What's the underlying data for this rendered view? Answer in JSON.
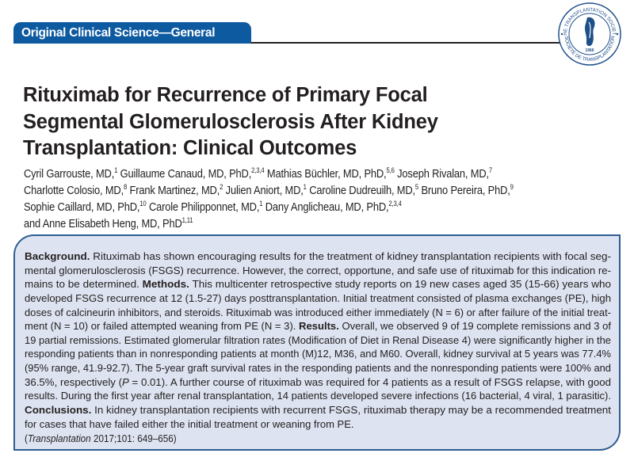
{
  "header": {
    "section_label": "Original Clinical Science—General",
    "accent_color": "#0e5aa0",
    "logo": {
      "top_text": "THE TRANSPLANTATION SOCIETY",
      "bottom_text": "SOCIÉTÉ DE TRANSPLANTATION",
      "year": "1966"
    }
  },
  "title": {
    "lines": [
      "Rituximab for Recurrence of Primary Focal",
      "Segmental Glomerulosclerosis After Kidney",
      "Transplantation: Clinical Outcomes"
    ]
  },
  "authors": {
    "lines": [
      [
        {
          "t": "Cyril Garrouste, MD,"
        },
        {
          "t": "1",
          "sup": true
        },
        {
          "t": " Guillaume Canaud, MD, PhD,"
        },
        {
          "t": "2,3,4",
          "sup": true
        },
        {
          "t": " Mathias Büchler, MD, PhD,"
        },
        {
          "t": "5,6",
          "sup": true
        },
        {
          "t": " Joseph Rivalan, MD,"
        },
        {
          "t": "7",
          "sup": true
        }
      ],
      [
        {
          "t": "Charlotte Colosio, MD,"
        },
        {
          "t": "8",
          "sup": true
        },
        {
          "t": " Frank Martinez, MD,"
        },
        {
          "t": "2",
          "sup": true
        },
        {
          "t": " Julien Aniort, MD,"
        },
        {
          "t": "1",
          "sup": true
        },
        {
          "t": " Caroline Dudreuilh, MD,"
        },
        {
          "t": "5",
          "sup": true
        },
        {
          "t": " Bruno Pereira, PhD,"
        },
        {
          "t": "9",
          "sup": true
        }
      ],
      [
        {
          "t": "Sophie Caillard, MD, PhD,"
        },
        {
          "t": "10",
          "sup": true
        },
        {
          "t": " Carole Philipponnet, MD,"
        },
        {
          "t": "1",
          "sup": true
        },
        {
          "t": " Dany Anglicheau, MD, PhD,"
        },
        {
          "t": "2,3,4",
          "sup": true
        }
      ],
      [
        {
          "t": "and Anne Elisabeth Heng, MD, PhD"
        },
        {
          "t": "1,11",
          "sup": true
        }
      ]
    ]
  },
  "abstract": {
    "lines": [
      [
        {
          "t": "Background.",
          "b": true
        },
        {
          "t": " Rituximab has shown encouraging results for the treatment of kidney transplantation recipients with focal seg-"
        }
      ],
      [
        {
          "t": "mental glomerulosclerosis (FSGS) recurrence. However, the correct, opportune, and safe use of rituximab for this indication re-"
        }
      ],
      [
        {
          "t": "mains to be determined. "
        },
        {
          "t": "Methods.",
          "b": true
        },
        {
          "t": " This multicenter retrospective study reports on 19 new cases aged 35 (15-66) years who"
        }
      ],
      [
        {
          "t": "developed FSGS recurrence at 12 (1.5-27) days posttransplantation. Initial treatment consisted of plasma exchanges (PE), high"
        }
      ],
      [
        {
          "t": "doses of calcineurin inhibitors, and steroids. Rituximab was introduced either immediately (N = 6) or after failure of the initial treat-"
        }
      ],
      [
        {
          "t": "ment (N = 10) or failed attempted weaning from PE (N = 3). "
        },
        {
          "t": "Results.",
          "b": true
        },
        {
          "t": " Overall, we observed 9 of 19 complete remissions and 3 of"
        }
      ],
      [
        {
          "t": "19 partial remissions. Estimated glomerular filtration rates (Modification of Diet in Renal Disease 4) were significantly higher in the"
        }
      ],
      [
        {
          "t": "responding patients than in nonresponding patients at month (M)12, M36, and M60. Overall, kidney survival at 5 years was 77.4%"
        }
      ],
      [
        {
          "t": "(95% range, 41.9-92.7). The 5-year graft survival rates in the responding patients and the nonresponding patients were 100% and"
        }
      ],
      [
        {
          "t": "36.5%, respectively ("
        },
        {
          "t": "P",
          "i": true
        },
        {
          "t": " = 0.01). A further course of rituximab was required for 4 patients as a result of FSGS relapse, with good"
        }
      ],
      [
        {
          "t": "results. During the first year after renal transplantation, 14 patients developed severe infections (16 bacterial, 4 viral, 1 parasitic)."
        }
      ],
      [
        {
          "t": "Conclusions.",
          "b": true
        },
        {
          "t": " In kidney transplantation recipients with recurrent FSGS, rituximab therapy may be a recommended treatment"
        }
      ],
      [
        {
          "t": "for cases that have failed either the initial treatment or weaning from PE."
        }
      ]
    ],
    "citation": [
      {
        "t": "("
      },
      {
        "t": "Transplantation",
        "i": true
      },
      {
        "t": " 2017;101: 649–656)"
      }
    ],
    "background_color": "#dde3f0",
    "border_color": "#2d5d92"
  }
}
